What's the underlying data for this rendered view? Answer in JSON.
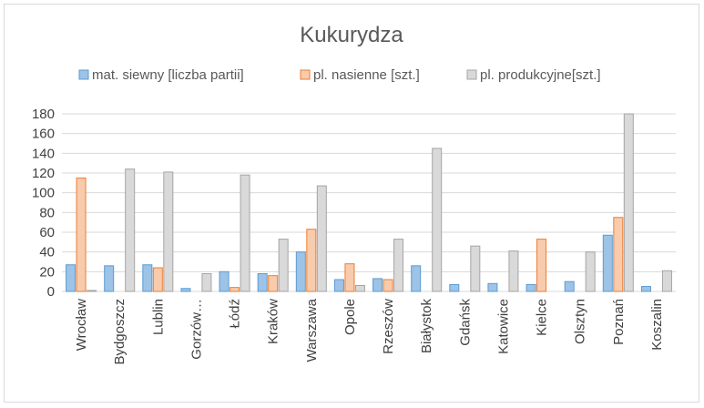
{
  "chart_data": {
    "type": "bar",
    "title": "Kukurydza",
    "categories": [
      "Wrocław",
      "Bydgoszcz",
      "Lublin",
      "Gorzów…",
      "Łódź",
      "Kraków",
      "Warszawa",
      "Opole",
      "Rzeszów",
      "Białystok",
      "Gdańsk",
      "Katowice",
      "Kielce",
      "Olsztyn",
      "Poznań",
      "Koszalin"
    ],
    "series": [
      {
        "name": "mat. siewny [liczba partii]",
        "color": "#9dc3e6",
        "stroke": "#5b9bd5",
        "values": [
          27,
          26,
          27,
          3,
          20,
          18,
          40,
          12,
          13,
          26,
          7,
          8,
          7,
          10,
          57,
          5
        ]
      },
      {
        "name": "pl. nasienne [szt.]",
        "color": "#f8cbad",
        "stroke": "#ed7d31",
        "values": [
          115,
          0,
          24,
          0,
          4,
          16,
          63,
          28,
          12,
          0,
          0,
          0,
          53,
          0,
          75,
          0
        ]
      },
      {
        "name": "pl. produkcyjne[szt.]",
        "color": "#d9d9d9",
        "stroke": "#a5a5a5",
        "values": [
          1,
          124,
          121,
          18,
          118,
          53,
          107,
          6,
          53,
          145,
          46,
          41,
          0,
          40,
          180,
          21
        ]
      }
    ],
    "y_ticks": [
      0,
      20,
      40,
      60,
      80,
      100,
      120,
      140,
      160,
      180
    ],
    "ylim": [
      0,
      180
    ],
    "grid": true,
    "legend_position": "top"
  }
}
